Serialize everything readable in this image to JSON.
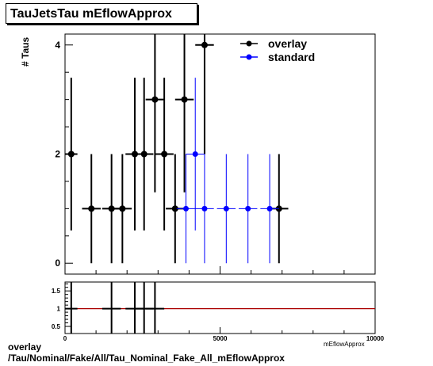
{
  "chart_data": {
    "type": "scatter",
    "title": "TauJetsTau mEflowApprox",
    "ylabel": "# Taus",
    "xlabel": "mEflowApprox",
    "xlim": [
      0,
      10000
    ],
    "ylim": [
      -0.2,
      4.2
    ],
    "x_ticks": [
      0,
      5000,
      10000
    ],
    "y_ticks": [
      0,
      2,
      4
    ],
    "ratio_ylim": [
      0.3,
      1.75
    ],
    "ratio_y_ticks": [
      0.5,
      1,
      1.5
    ],
    "legend_position": "top-right",
    "series": [
      {
        "name": "overlay",
        "color": "#000000",
        "points": [
          {
            "x": 200,
            "y": 2,
            "xerr": 200,
            "yerr": 1.4
          },
          {
            "x": 850,
            "y": 1,
            "xerr": 300,
            "yerr": 1.0
          },
          {
            "x": 1500,
            "y": 1,
            "xerr": 300,
            "yerr": 1.0
          },
          {
            "x": 1850,
            "y": 1,
            "xerr": 300,
            "yerr": 1.0
          },
          {
            "x": 2250,
            "y": 2,
            "xerr": 300,
            "yerr": 1.4
          },
          {
            "x": 2550,
            "y": 2,
            "xerr": 300,
            "yerr": 1.4
          },
          {
            "x": 2900,
            "y": 3,
            "xerr": 300,
            "yerr": 1.7
          },
          {
            "x": 3200,
            "y": 2,
            "xerr": 300,
            "yerr": 1.4
          },
          {
            "x": 3550,
            "y": 1,
            "xerr": 300,
            "yerr": 1.0
          },
          {
            "x": 3850,
            "y": 3,
            "xerr": 300,
            "yerr": 1.7
          },
          {
            "x": 4500,
            "y": 4,
            "xerr": 300,
            "yerr": 2.0
          },
          {
            "x": 6900,
            "y": 1,
            "xerr": 300,
            "yerr": 1.0
          }
        ]
      },
      {
        "name": "standard",
        "color": "#0000ff",
        "points": [
          {
            "x": 3900,
            "y": 1,
            "xerr": 300,
            "yerr": 1.0
          },
          {
            "x": 4200,
            "y": 2,
            "xerr": 300,
            "yerr": 1.4
          },
          {
            "x": 4500,
            "y": 1,
            "xerr": 300,
            "yerr": 1.0
          },
          {
            "x": 5200,
            "y": 1,
            "xerr": 300,
            "yerr": 1.0
          },
          {
            "x": 5900,
            "y": 1,
            "xerr": 300,
            "yerr": 1.0
          },
          {
            "x": 6600,
            "y": 1,
            "xerr": 300,
            "yerr": 1.0
          }
        ]
      }
    ],
    "ratio": {
      "reference": 1,
      "reference_color": "#aa0000",
      "points": [
        {
          "x": 200,
          "y": 1,
          "xerr": 200,
          "yerr": 0.9
        },
        {
          "x": 1500,
          "y": 1,
          "xerr": 300,
          "yerr": 0.9
        },
        {
          "x": 2250,
          "y": 1,
          "xerr": 300,
          "yerr": 0.9
        },
        {
          "x": 2550,
          "y": 1,
          "xerr": 300,
          "yerr": 0.9
        },
        {
          "x": 2900,
          "y": 1,
          "xerr": 300,
          "yerr": 0.9
        }
      ]
    }
  },
  "footer": {
    "line1": "overlay",
    "line2": "/Tau/Nominal/Fake/All/Tau_Nominal_Fake_All_mEflowApprox"
  }
}
